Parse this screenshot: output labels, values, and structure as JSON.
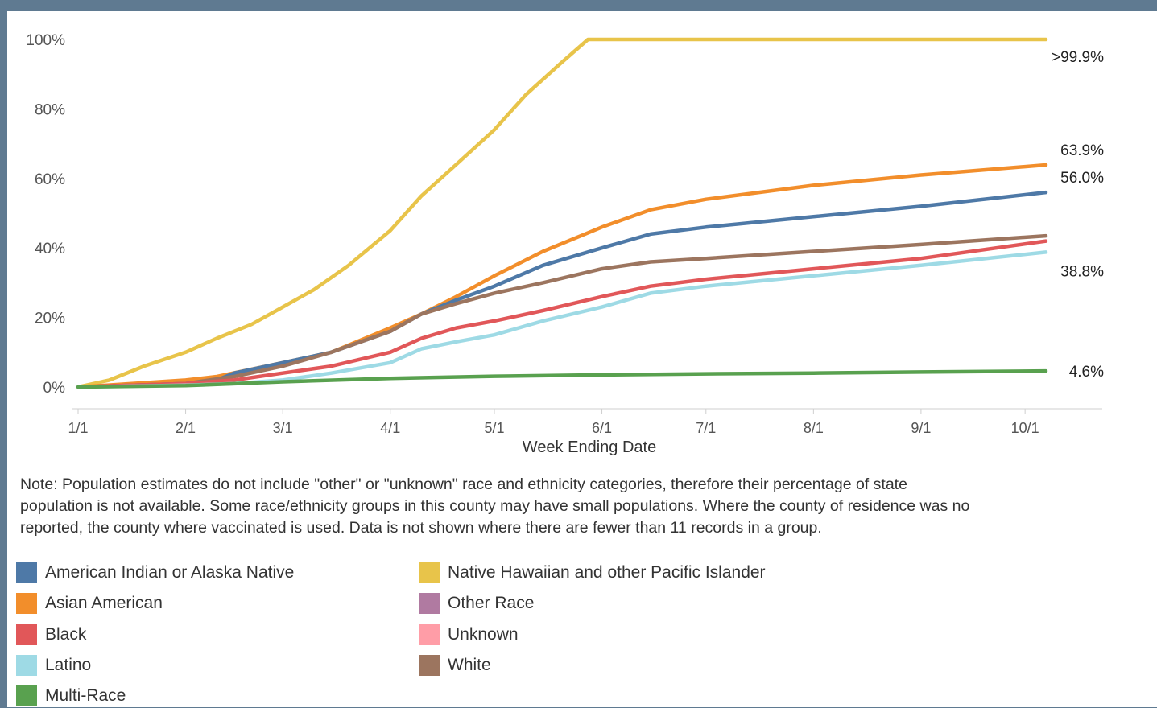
{
  "chart_data": {
    "type": "line",
    "title": "",
    "xlabel": "Week Ending Date",
    "ylabel": "",
    "x_ticks": [
      "1/1",
      "2/1",
      "3/1",
      "4/1",
      "5/1",
      "6/1",
      "7/1",
      "8/1",
      "9/1",
      "10/1"
    ],
    "x_range": [
      "2021-01-01",
      "2021-10-07"
    ],
    "ylim": [
      0,
      100
    ],
    "y_ticks": [
      "0%",
      "20%",
      "40%",
      "60%",
      "80%",
      "100%"
    ],
    "y_unit": "%",
    "grid": false,
    "legend_position": "bottom",
    "series": [
      {
        "name": "Native Hawaiian and other Pacific Islander",
        "color": "#e8c44a",
        "end_label": ">99.9%",
        "x": [
          "2021-01-01",
          "2021-01-10",
          "2021-01-20",
          "2021-02-01",
          "2021-02-10",
          "2021-02-20",
          "2021-03-01",
          "2021-03-10",
          "2021-03-20",
          "2021-04-01",
          "2021-04-10",
          "2021-04-20",
          "2021-05-01",
          "2021-05-10",
          "2021-05-20",
          "2021-05-28",
          "2021-06-10",
          "2021-07-01",
          "2021-08-01",
          "2021-09-01",
          "2021-10-07"
        ],
        "y": [
          0,
          2,
          6,
          10,
          14,
          18,
          23,
          28,
          35,
          45,
          55,
          64,
          74,
          84,
          93,
          100,
          100,
          100,
          100,
          100,
          100
        ]
      },
      {
        "name": "Asian American",
        "color": "#f28e2b",
        "end_label": "63.9%",
        "x": [
          "2021-01-01",
          "2021-02-01",
          "2021-02-10",
          "2021-03-01",
          "2021-03-15",
          "2021-04-01",
          "2021-04-10",
          "2021-04-20",
          "2021-05-01",
          "2021-05-15",
          "2021-06-01",
          "2021-06-15",
          "2021-07-01",
          "2021-08-01",
          "2021-09-01",
          "2021-10-07"
        ],
        "y": [
          0,
          2,
          3,
          7,
          10,
          17,
          21,
          26,
          32,
          39,
          46,
          51,
          54,
          58,
          61,
          63.9
        ]
      },
      {
        "name": "American Indian or Alaska Native",
        "color": "#4e79a7",
        "end_label": "56.0%",
        "x": [
          "2021-01-01",
          "2021-02-01",
          "2021-02-10",
          "2021-02-15",
          "2021-03-01",
          "2021-03-15",
          "2021-04-01",
          "2021-04-10",
          "2021-04-20",
          "2021-05-01",
          "2021-05-15",
          "2021-06-01",
          "2021-06-15",
          "2021-07-01",
          "2021-08-01",
          "2021-09-01",
          "2021-10-07"
        ],
        "y": [
          0,
          1,
          2,
          4,
          7,
          10,
          16,
          21,
          25,
          29,
          35,
          40,
          44,
          46,
          49,
          52,
          56.0
        ]
      },
      {
        "name": "White",
        "color": "#9c755f",
        "end_label": "",
        "x": [
          "2021-01-01",
          "2021-02-01",
          "2021-02-15",
          "2021-03-01",
          "2021-03-15",
          "2021-04-01",
          "2021-04-10",
          "2021-04-20",
          "2021-05-01",
          "2021-05-15",
          "2021-06-01",
          "2021-06-15",
          "2021-07-01",
          "2021-08-01",
          "2021-09-01",
          "2021-10-07"
        ],
        "y": [
          0,
          1,
          3,
          6,
          10,
          16,
          21,
          24,
          27,
          30,
          34,
          36,
          37,
          39,
          41,
          43.5
        ]
      },
      {
        "name": "Black",
        "color": "#e15759",
        "end_label": "",
        "x": [
          "2021-01-01",
          "2021-02-01",
          "2021-02-15",
          "2021-03-01",
          "2021-03-15",
          "2021-04-01",
          "2021-04-10",
          "2021-04-20",
          "2021-05-01",
          "2021-05-15",
          "2021-06-01",
          "2021-06-15",
          "2021-07-01",
          "2021-08-01",
          "2021-09-01",
          "2021-10-07"
        ],
        "y": [
          0,
          1,
          2,
          4,
          6,
          10,
          14,
          17,
          19,
          22,
          26,
          29,
          31,
          34,
          37,
          42
        ]
      },
      {
        "name": "Latino",
        "color": "#9edae5",
        "end_label": "38.8%",
        "x": [
          "2021-01-01",
          "2021-02-01",
          "2021-02-15",
          "2021-03-01",
          "2021-03-15",
          "2021-04-01",
          "2021-04-10",
          "2021-04-20",
          "2021-05-01",
          "2021-05-15",
          "2021-06-01",
          "2021-06-15",
          "2021-07-01",
          "2021-08-01",
          "2021-09-01",
          "2021-10-07"
        ],
        "y": [
          0,
          0.5,
          1,
          2,
          4,
          7,
          11,
          13,
          15,
          19,
          23,
          27,
          29,
          32,
          35,
          38.8
        ]
      },
      {
        "name": "Multi-Race",
        "color": "#59a14f",
        "end_label": "4.6%",
        "x": [
          "2021-01-01",
          "2021-02-01",
          "2021-03-01",
          "2021-04-01",
          "2021-05-01",
          "2021-06-01",
          "2021-07-01",
          "2021-08-01",
          "2021-09-01",
          "2021-10-07"
        ],
        "y": [
          0,
          0.4,
          1.5,
          2.5,
          3.1,
          3.5,
          3.8,
          4.0,
          4.3,
          4.6
        ]
      }
    ]
  },
  "note": "Note: Population estimates do not include \"other\" or \"unknown\" race and ethnicity categories, therefore their percentage of state\npopulation is not available. Some race/ethnicity groups in this county may have small populations. Where the county of residence was no\nreported, the county where vaccinated is used. Data is not shown where there are fewer than 11 records in a group.",
  "legend": [
    {
      "label": "American Indian or Alaska Native",
      "color": "#4e79a7"
    },
    {
      "label": "Asian American",
      "color": "#f28e2b"
    },
    {
      "label": "Black",
      "color": "#e15759"
    },
    {
      "label": "Latino",
      "color": "#9edae5"
    },
    {
      "label": "Multi-Race",
      "color": "#59a14f"
    },
    {
      "label": "Native Hawaiian and other Pacific Islander",
      "color": "#e8c44a"
    },
    {
      "label": "Other Race",
      "color": "#b07aa1"
    },
    {
      "label": "Unknown",
      "color": "#ff9da7"
    },
    {
      "label": "White",
      "color": "#9c755f"
    }
  ]
}
